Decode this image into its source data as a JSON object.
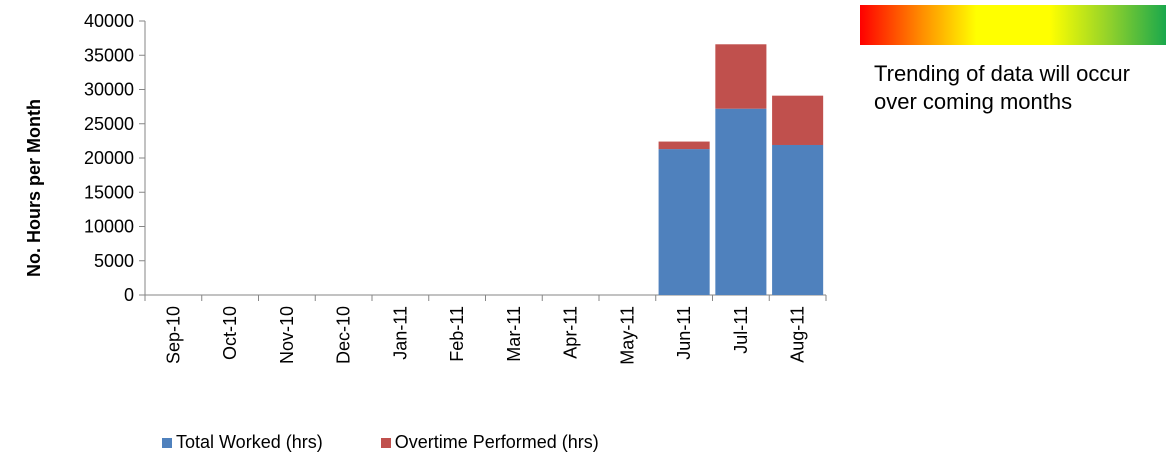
{
  "chart_data": {
    "type": "bar",
    "stacked": true,
    "categories": [
      "Sep-10",
      "Oct-10",
      "Nov-10",
      "Dec-10",
      "Jan-11",
      "Feb-11",
      "Mar-11",
      "Apr-11",
      "May-11",
      "Jun-11",
      "Jul-11",
      "Aug-11"
    ],
    "series": [
      {
        "name": "Total Worked (hrs)",
        "color": "#4f81bd",
        "values": [
          0,
          0,
          0,
          0,
          0,
          0,
          0,
          0,
          0,
          21300,
          27200,
          21900
        ]
      },
      {
        "name": "Overtime Performed (hrs)",
        "color": "#c0504d",
        "values": [
          0,
          0,
          0,
          0,
          0,
          0,
          0,
          0,
          0,
          1100,
          9400,
          7200
        ]
      }
    ],
    "ylabel": "No. Hours per Month",
    "xlabel": "",
    "ylim": [
      0,
      40000
    ],
    "yticks": [
      0,
      5000,
      10000,
      15000,
      20000,
      25000,
      30000,
      35000,
      40000
    ],
    "grid": false,
    "legend_position": "bottom"
  },
  "side_note": {
    "text": "Trending of data will occur over coming months",
    "gradient_colors": [
      "#ff0000",
      "#ff8c00",
      "#ffff00",
      "#8ed02c",
      "#1aa84c"
    ]
  }
}
